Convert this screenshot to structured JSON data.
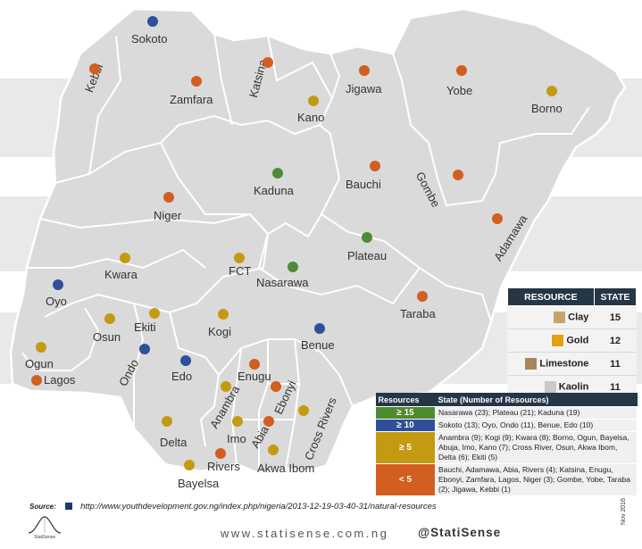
{
  "colors": {
    "blue": "#2f4f9a",
    "orange": "#d25e1f",
    "gold": "#c59a13",
    "green": "#4f8a35",
    "header_dark": "#253645",
    "band_green": "#4e8a2e",
    "band_blue": "#2f4f9a",
    "band_gold": "#c59a13",
    "band_orange": "#d25e1f"
  },
  "states": [
    {
      "name": "Sokoto",
      "color": "blue"
    },
    {
      "name": "Kebbi",
      "color": "orange"
    },
    {
      "name": "Zamfara",
      "color": "orange"
    },
    {
      "name": "Katsina",
      "color": "orange"
    },
    {
      "name": "Kano",
      "color": "gold"
    },
    {
      "name": "Jigawa",
      "color": "orange"
    },
    {
      "name": "Yobe",
      "color": "orange"
    },
    {
      "name": "Borno",
      "color": "gold"
    },
    {
      "name": "Kaduna",
      "color": "green"
    },
    {
      "name": "Bauchi",
      "color": "orange"
    },
    {
      "name": "Gombe",
      "color": "orange"
    },
    {
      "name": "Niger",
      "color": "orange"
    },
    {
      "name": "Adamawa",
      "color": "orange"
    },
    {
      "name": "Plateau",
      "color": "green"
    },
    {
      "name": "Kwara",
      "color": "gold"
    },
    {
      "name": "FCT",
      "color": "gold"
    },
    {
      "name": "Nasarawa",
      "color": "green"
    },
    {
      "name": "Oyo",
      "color": "blue"
    },
    {
      "name": "Taraba",
      "color": "orange"
    },
    {
      "name": "Ekiti",
      "color": "gold"
    },
    {
      "name": "Osun",
      "color": "gold"
    },
    {
      "name": "Kogi",
      "color": "gold"
    },
    {
      "name": "Benue",
      "color": "blue"
    },
    {
      "name": "Ogun",
      "color": "gold"
    },
    {
      "name": "Ondo",
      "color": "blue"
    },
    {
      "name": "Lagos",
      "color": "orange"
    },
    {
      "name": "Edo",
      "color": "blue"
    },
    {
      "name": "Enugu",
      "color": "orange"
    },
    {
      "name": "Anambra",
      "color": "gold"
    },
    {
      "name": "Ebonyi",
      "color": "orange"
    },
    {
      "name": "Cross Rivers",
      "color": "gold"
    },
    {
      "name": "Delta",
      "color": "gold"
    },
    {
      "name": "Imo",
      "color": "gold"
    },
    {
      "name": "Abia",
      "color": "orange"
    },
    {
      "name": "Rivers",
      "color": "orange"
    },
    {
      "name": "Akwa Ibom",
      "color": "gold"
    },
    {
      "name": "Bayelsa",
      "color": "gold"
    }
  ],
  "resource_table": {
    "header_resource": "RESOURCE",
    "header_state": "STATE",
    "rows": [
      {
        "name": "Clay",
        "count": "15",
        "swatch_color": "#c8a36a"
      },
      {
        "name": "Gold",
        "count": "12",
        "swatch_color": "#e0a20f"
      },
      {
        "name": "Limestone",
        "count": "11",
        "swatch_color": "#a9865a"
      },
      {
        "name": "Kaolin",
        "count": "11",
        "swatch_color": "#c9c9c9"
      }
    ]
  },
  "legend": {
    "header_left": "Resources",
    "header_right": "State (Number of Resources)",
    "rows": [
      {
        "category": "≥ 15",
        "band": "band_green",
        "text": "Nasarawa (23); Plateau (21); Kaduna (19)"
      },
      {
        "category": "≥ 10",
        "band": "band_blue",
        "text": "Sokoto (13); Oyo, Ondo (11), Benue, Edo (10)"
      },
      {
        "category": "≥ 5",
        "band": "band_gold",
        "text": "Anambra (9); Kogi (9); Kwara (8); Borno, Ogun, Bayelsa, Abuja, Imo, Kano (7); Cross River, Osun, Akwa Ibom, Delta (6); Ekiti (5)"
      },
      {
        "category": "< 5",
        "band": "band_orange",
        "text": "Bauchi, Adamawa, Abia, Rivers (4); Katsina, Enugu, Ebonyi, Zamfara, Lagos, Niger (3); Gombe, Yobe, Taraba (2); Jigawa, Kebbi (1)"
      }
    ]
  },
  "source": {
    "label": "Source:",
    "url": "http://www.youthdevelopment.gov.ng/index.php/nigeria/2013-12-19-03-40-31/natural-resources"
  },
  "footer": {
    "website": "www.statisense.com.ng",
    "handle": "@StatiSense",
    "brand": "StatiSense",
    "date": "Nov 2016"
  }
}
